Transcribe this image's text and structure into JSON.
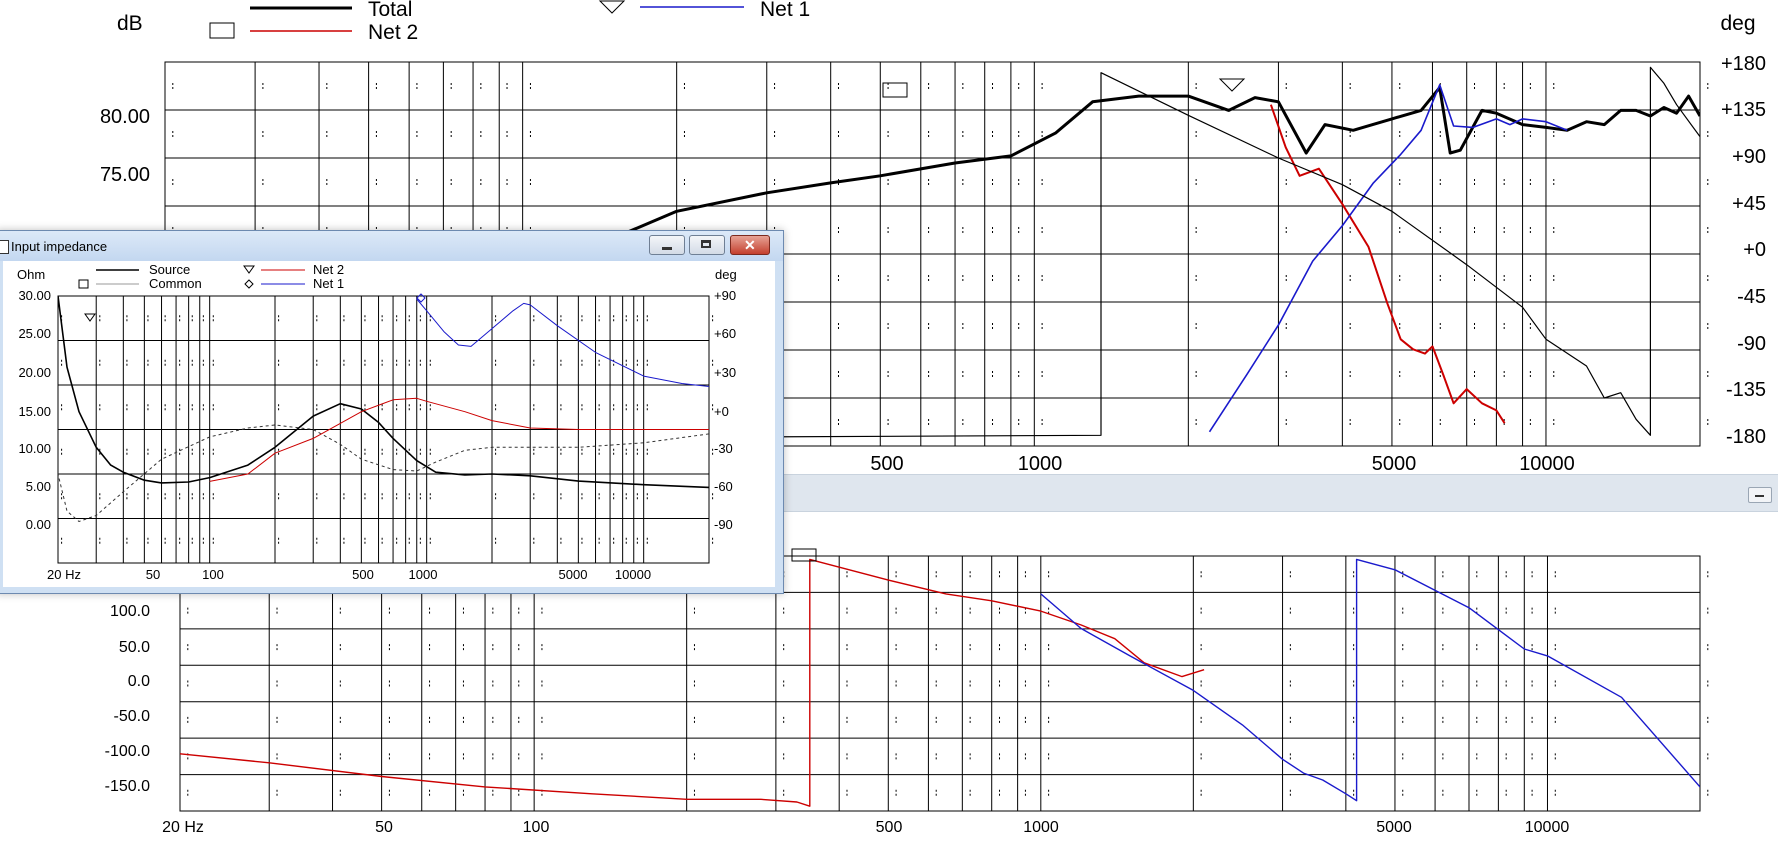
{
  "main_chart": {
    "ylabel_left": "dB",
    "ylabel_right": "deg",
    "legend": [
      {
        "name": "Total",
        "color": "#000000",
        "marker": "none",
        "bold": true
      },
      {
        "name": "Net 2",
        "color": "#cc0000",
        "marker": "square-icon"
      },
      {
        "name": "Net 1",
        "color": "#1a1acc",
        "marker": "triangle-icon"
      }
    ],
    "left_ticks": [
      "80.00",
      "75.00"
    ],
    "right_ticks": [
      "+180",
      "+135",
      "+90",
      "+45",
      "+0",
      "-45",
      "-90",
      "-135",
      "-180"
    ],
    "x_ticks": [
      "500",
      "1000",
      "5000",
      "10000"
    ]
  },
  "lower_chart": {
    "y_ticks": [
      "100.0",
      "50.0",
      "0.0",
      "-50.0",
      "-100.0",
      "-150.0"
    ],
    "x_ticks": [
      "20 Hz",
      "50",
      "100",
      "500",
      "1000",
      "5000",
      "10000"
    ]
  },
  "impedance_window": {
    "title": "Input impedance",
    "ylabel_left": "Ohm",
    "ylabel_right": "deg",
    "legend": [
      {
        "name": "Source",
        "color": "#000000",
        "marker": "none"
      },
      {
        "name": "Common",
        "color": "#999999",
        "marker": "square-icon"
      },
      {
        "name": "Net 2",
        "color": "#cc0000",
        "marker": "triangle-icon"
      },
      {
        "name": "Net 1",
        "color": "#1a1acc",
        "marker": "diamond-icon"
      }
    ],
    "left_ticks": [
      "30.00",
      "25.00",
      "20.00",
      "15.00",
      "10.00",
      "5.00",
      "0.00"
    ],
    "right_ticks": [
      "+90",
      "+60",
      "+30",
      "+0",
      "-30",
      "-60",
      "-90"
    ],
    "x_ticks": [
      "20 Hz",
      "50",
      "100",
      "500",
      "1000",
      "5000",
      "10000"
    ]
  },
  "chart_data": [
    {
      "type": "line",
      "xscale": "log",
      "xlim": [
        20,
        20000
      ],
      "ylim": [
        57,
        84
      ],
      "y2lim": [
        -180,
        180
      ],
      "series": [
        {
          "name": "Total",
          "axis": "dB",
          "color": "#000000",
          "width": 3,
          "points": [
            [
              120,
              70.0
            ],
            [
              150,
              71.6
            ],
            [
              200,
              73.5
            ],
            [
              300,
              74.8
            ],
            [
              400,
              75.5
            ],
            [
              500,
              76.0
            ],
            [
              700,
              76.9
            ],
            [
              900,
              77.4
            ],
            [
              1100,
              79.0
            ],
            [
              1300,
              81.2
            ],
            [
              1600,
              81.6
            ],
            [
              2000,
              81.6
            ],
            [
              2400,
              80.6
            ],
            [
              2700,
              81.5
            ],
            [
              3000,
              81.2
            ],
            [
              3400,
              77.6
            ],
            [
              3700,
              79.6
            ],
            [
              4200,
              79.2
            ],
            [
              5000,
              80.0
            ],
            [
              5700,
              80.6
            ],
            [
              6200,
              82.2
            ],
            [
              6500,
              77.6
            ],
            [
              6800,
              77.8
            ],
            [
              7500,
              80.6
            ],
            [
              8000,
              80.4
            ],
            [
              9000,
              79.6
            ],
            [
              10000,
              79.4
            ],
            [
              11000,
              79.2
            ],
            [
              12000,
              79.8
            ],
            [
              13000,
              79.6
            ],
            [
              14000,
              80.6
            ],
            [
              15000,
              80.6
            ],
            [
              16000,
              80.2
            ],
            [
              17000,
              80.8
            ],
            [
              18000,
              80.4
            ],
            [
              19000,
              81.6
            ],
            [
              20000,
              80.2
            ]
          ]
        },
        {
          "name": "Net 2",
          "axis": "dB",
          "color": "#cc0000",
          "width": 2,
          "points": [
            [
              2900,
              81.0
            ],
            [
              3100,
              78.0
            ],
            [
              3300,
              76.0
            ],
            [
              3600,
              76.5
            ],
            [
              4000,
              74.0
            ],
            [
              4500,
              71.0
            ],
            [
              4900,
              67.0
            ],
            [
              5200,
              64.5
            ],
            [
              5500,
              63.8
            ],
            [
              5800,
              63.5
            ],
            [
              6000,
              64.0
            ],
            [
              6300,
              62.0
            ],
            [
              6600,
              60.0
            ],
            [
              7000,
              61.0
            ],
            [
              7500,
              60.0
            ],
            [
              8000,
              59.5
            ],
            [
              8300,
              58.6
            ]
          ]
        },
        {
          "name": "Net 1",
          "axis": "dB",
          "color": "#1a1acc",
          "width": 1.6,
          "points": [
            [
              2200,
              58.0
            ],
            [
              2600,
              62.0
            ],
            [
              3000,
              65.5
            ],
            [
              3500,
              70.0
            ],
            [
              4000,
              72.5
            ],
            [
              4600,
              75.5
            ],
            [
              5200,
              77.5
            ],
            [
              5700,
              79.2
            ],
            [
              6200,
              82.4
            ],
            [
              6600,
              79.5
            ],
            [
              7200,
              79.4
            ],
            [
              8000,
              80.0
            ],
            [
              8500,
              79.6
            ],
            [
              9000,
              80.0
            ],
            [
              10000,
              79.8
            ],
            [
              11000,
              79.2
            ]
          ]
        },
        {
          "name": "Total phase",
          "axis": "deg",
          "color": "#000000",
          "width": 1.2,
          "points": [
            [
              2,
              -175
            ],
            [
              1350,
              -170
            ],
            [
              1350,
              170
            ],
            [
              2000,
              130
            ],
            [
              3000,
              90
            ],
            [
              4000,
              65
            ],
            [
              5000,
              40
            ],
            [
              7000,
              -10
            ],
            [
              9000,
              -50
            ],
            [
              10000,
              -80
            ],
            [
              12000,
              -105
            ],
            [
              13000,
              -135
            ],
            [
              14000,
              -130
            ],
            [
              15000,
              -155
            ],
            [
              16000,
              -170
            ],
            [
              16000,
              175
            ],
            [
              17000,
              160
            ],
            [
              18000,
              140
            ],
            [
              20000,
              110
            ]
          ]
        }
      ]
    },
    {
      "type": "line",
      "xscale": "log",
      "xlim": [
        20,
        20000
      ],
      "ylim": [
        -185,
        185
      ],
      "series": [
        {
          "name": "Net 2 phase",
          "color": "#cc0000",
          "width": 1.4,
          "points": [
            [
              20,
              -102
            ],
            [
              30,
              -115
            ],
            [
              50,
              -135
            ],
            [
              80,
              -150
            ],
            [
              130,
              -160
            ],
            [
              200,
              -168
            ],
            [
              280,
              -168
            ],
            [
              330,
              -172
            ],
            [
              350,
              -178
            ],
            [
              350,
              180
            ],
            [
              500,
              150
            ],
            [
              650,
              130
            ],
            [
              800,
              120
            ],
            [
              1000,
              105
            ],
            [
              1200,
              85
            ],
            [
              1400,
              65
            ],
            [
              1600,
              30
            ],
            [
              1900,
              10
            ],
            [
              2100,
              20
            ]
          ]
        },
        {
          "name": "Net 1 phase",
          "color": "#1a1acc",
          "width": 1.4,
          "points": [
            [
              1000,
              130
            ],
            [
              1200,
              80
            ],
            [
              1500,
              40
            ],
            [
              2000,
              -10
            ],
            [
              2500,
              -60
            ],
            [
              3000,
              -110
            ],
            [
              3300,
              -130
            ],
            [
              3600,
              -140
            ],
            [
              4000,
              -160
            ],
            [
              4200,
              -170
            ],
            [
              4200,
              180
            ],
            [
              5000,
              165
            ],
            [
              7000,
              110
            ],
            [
              9000,
              50
            ],
            [
              10000,
              40
            ],
            [
              14000,
              -20
            ],
            [
              20000,
              -150
            ]
          ]
        }
      ]
    },
    {
      "type": "line",
      "xscale": "log",
      "xlim": [
        20,
        20000
      ],
      "ylim": [
        0,
        30
      ],
      "y2lim": [
        -90,
        90
      ],
      "series": [
        {
          "name": "Source",
          "axis": "Ohm",
          "color": "#000000",
          "width": 1.6,
          "points": [
            [
              20,
              30
            ],
            [
              22,
              22
            ],
            [
              25,
              17
            ],
            [
              30,
              13
            ],
            [
              35,
              11
            ],
            [
              40,
              10.2
            ],
            [
              50,
              9.3
            ],
            [
              60,
              9.0
            ],
            [
              80,
              9.1
            ],
            [
              100,
              9.6
            ],
            [
              150,
              11
            ],
            [
              200,
              13
            ],
            [
              300,
              16.5
            ],
            [
              400,
              17.9
            ],
            [
              500,
              17.3
            ],
            [
              600,
              15.8
            ],
            [
              700,
              14
            ],
            [
              900,
              11.5
            ],
            [
              1100,
              10.2
            ],
            [
              1500,
              9.9
            ],
            [
              2000,
              10
            ],
            [
              3000,
              9.8
            ],
            [
              5000,
              9.2
            ],
            [
              10000,
              8.8
            ],
            [
              20000,
              8.5
            ]
          ]
        },
        {
          "name": "Common",
          "axis": "deg",
          "color": "#333333",
          "width": 1,
          "dashed": true,
          "points": [
            [
              18,
              -10
            ],
            [
              20,
              -30
            ],
            [
              22,
              -55
            ],
            [
              25,
              -62
            ],
            [
              30,
              -58
            ],
            [
              40,
              -42
            ],
            [
              60,
              -20
            ],
            [
              100,
              -5
            ],
            [
              150,
              1
            ],
            [
              200,
              3
            ],
            [
              300,
              0
            ],
            [
              400,
              -10
            ],
            [
              500,
              -20
            ],
            [
              700,
              -27
            ],
            [
              900,
              -28
            ],
            [
              1100,
              -22
            ],
            [
              1500,
              -14
            ],
            [
              2000,
              -12
            ],
            [
              3000,
              -12
            ],
            [
              5000,
              -12
            ],
            [
              10000,
              -9
            ],
            [
              20000,
              -3
            ]
          ]
        },
        {
          "name": "Net 2",
          "axis": "deg",
          "color": "#cc0000",
          "width": 1,
          "points": [
            [
              100,
              -35
            ],
            [
              150,
              -30
            ],
            [
              200,
              -16
            ],
            [
              300,
              -6
            ],
            [
              500,
              12
            ],
            [
              700,
              20
            ],
            [
              900,
              21
            ],
            [
              1000,
              19
            ],
            [
              1500,
              12
            ],
            [
              2000,
              6
            ],
            [
              3000,
              1
            ],
            [
              5000,
              0
            ],
            [
              10000,
              0
            ],
            [
              20000,
              0
            ]
          ]
        },
        {
          "name": "Net 1",
          "axis": "deg",
          "color": "#1a1acc",
          "width": 1,
          "points": [
            [
              900,
              88
            ],
            [
              1000,
              80
            ],
            [
              1200,
              66
            ],
            [
              1400,
              57
            ],
            [
              1600,
              56
            ],
            [
              2000,
              68
            ],
            [
              2500,
              80
            ],
            [
              2800,
              85
            ],
            [
              3000,
              84
            ],
            [
              4000,
              70
            ],
            [
              6000,
              52
            ],
            [
              10000,
              36
            ],
            [
              15000,
              31
            ],
            [
              20000,
              29
            ]
          ]
        }
      ]
    }
  ]
}
